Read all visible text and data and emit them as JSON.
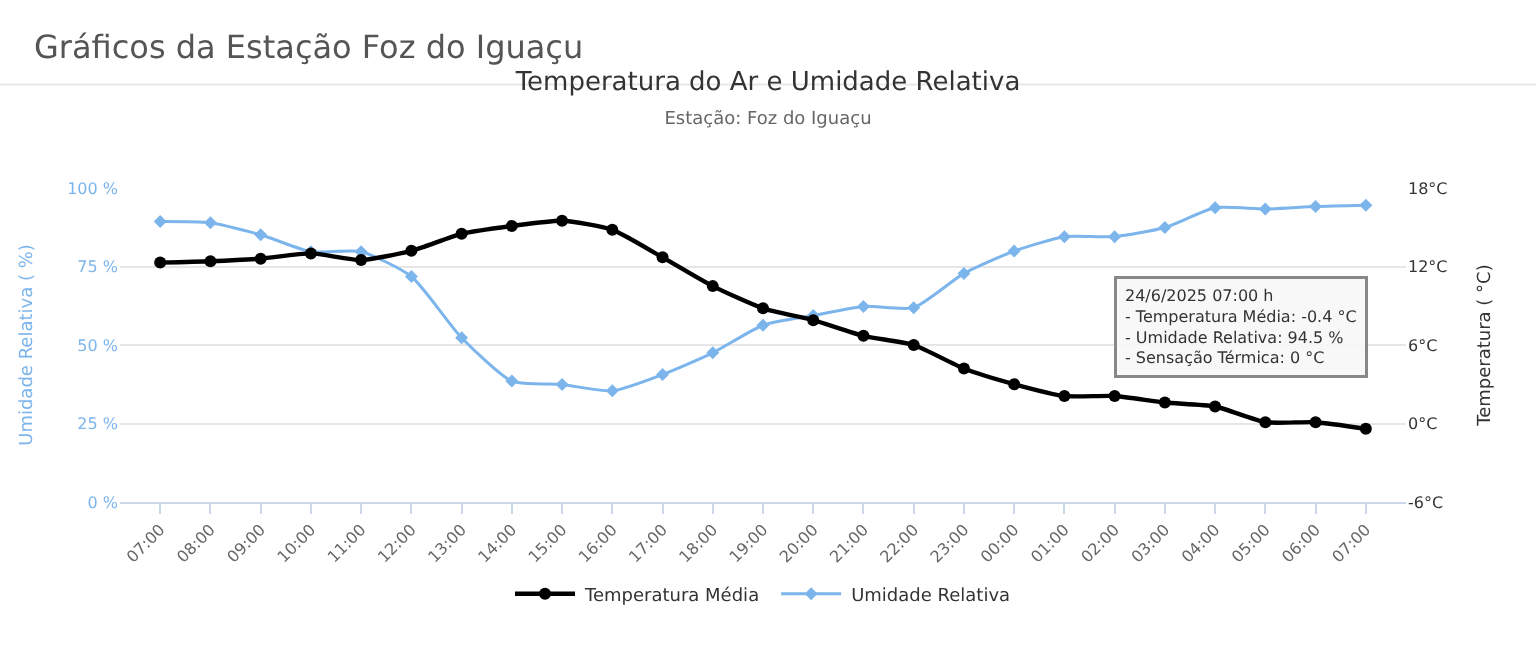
{
  "chart_data": {
    "type": "line",
    "title": "Temperatura do Ar e Umidade Relativa",
    "subtitle": "Estação: Foz do Iguaçu",
    "categories": [
      "07:00",
      "08:00",
      "09:00",
      "10:00",
      "11:00",
      "12:00",
      "13:00",
      "14:00",
      "15:00",
      "16:00",
      "17:00",
      "18:00",
      "19:00",
      "20:00",
      "21:00",
      "22:00",
      "23:00",
      "00:00",
      "01:00",
      "02:00",
      "03:00",
      "04:00",
      "05:00",
      "06:00",
      "07:00"
    ],
    "series": [
      {
        "name": "Temperatura Média",
        "color": "#000000",
        "axis": "y2",
        "marker": "circle",
        "values": [
          12.3,
          12.4,
          12.6,
          13.0,
          12.5,
          13.2,
          14.5,
          15.1,
          15.5,
          14.8,
          12.7,
          10.5,
          8.8,
          7.9,
          6.7,
          6.0,
          4.2,
          3.0,
          2.1,
          2.1,
          1.6,
          1.3,
          0.1,
          0.1,
          -0.4
        ]
      },
      {
        "name": "Umidade Relativa",
        "color": "#7cb5ec",
        "marker": "diamond",
        "values": [
          89.3,
          88.9,
          85.1,
          79.7,
          79.7,
          71.8,
          52.3,
          38.5,
          37.4,
          35.4,
          40.6,
          47.5,
          56.3,
          59.4,
          62.3,
          61.9,
          72.8,
          79.9,
          84.5,
          84.5,
          87.4,
          93.7,
          93.3,
          94.1,
          94.5
        ]
      }
    ],
    "ylabel": "Umidade Relativa ( %)",
    "y2label": "Temperatura ( °C)",
    "ylim": [
      0,
      100
    ],
    "yticks": [
      {
        "value": 0,
        "label": "0 %"
      },
      {
        "value": 25,
        "label": "25 %"
      },
      {
        "value": 50,
        "label": "50 %"
      },
      {
        "value": 75,
        "label": "75 %"
      },
      {
        "value": 100,
        "label": "100 %"
      }
    ],
    "y2lim": [
      -6,
      18
    ],
    "y2ticks": [
      {
        "value": -6,
        "label": "-6°C"
      },
      {
        "value": 0,
        "label": "0°C"
      },
      {
        "value": 6,
        "label": "6°C"
      },
      {
        "value": 12,
        "label": "12°C"
      },
      {
        "value": 18,
        "label": "18°C"
      }
    ],
    "grid": "y",
    "legend": "bottom",
    "line_style": "solid",
    "annotations": [
      "Gráficos da Estação Foz do Iguaçu",
      "24/6/2025 07:00 h\n- Temperatura Média: -0.4 °C\n- Umidade Relativa: 94.5 %\n- Sensação Térmica: 0 °C"
    ]
  }
}
